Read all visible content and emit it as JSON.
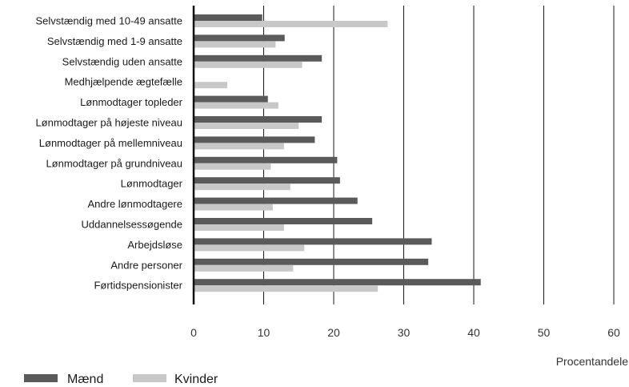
{
  "chart_data": {
    "type": "bar",
    "orientation": "horizontal",
    "categories": [
      "Selvstændig med 10-49 ansatte",
      "Selvstændig med 1-9 ansatte",
      "Selvstændig uden ansatte",
      "Medhjælpende ægtefælle",
      "Lønmodtager topleder",
      "Lønmodtager på højeste niveau",
      "Lønmodtager på mellemniveau",
      "Lønmodtager på grundniveau",
      "Lønmodtager",
      "Andre lønmodtagere",
      "Uddannelsessøgende",
      "Arbejdsløse",
      "Andre personer",
      "Førtidspensionister"
    ],
    "series": [
      {
        "name": "Mænd",
        "color": "#5a5a5a",
        "values": [
          9.8,
          13.0,
          18.3,
          0,
          10.6,
          18.3,
          17.3,
          20.5,
          20.9,
          23.4,
          25.5,
          34.0,
          33.5,
          41.0
        ]
      },
      {
        "name": "Kvinder",
        "color": "#c8c8c8",
        "values": [
          27.7,
          11.7,
          15.5,
          4.8,
          12.1,
          15.0,
          12.9,
          11.0,
          13.8,
          11.3,
          12.9,
          15.8,
          14.2,
          26.3
        ]
      }
    ],
    "xlabel": "Procentandele",
    "xlim": [
      0,
      60
    ],
    "xticks": [
      0,
      10,
      20,
      30,
      40,
      50,
      60
    ],
    "grid": true,
    "legend_position": "bottom-left"
  }
}
